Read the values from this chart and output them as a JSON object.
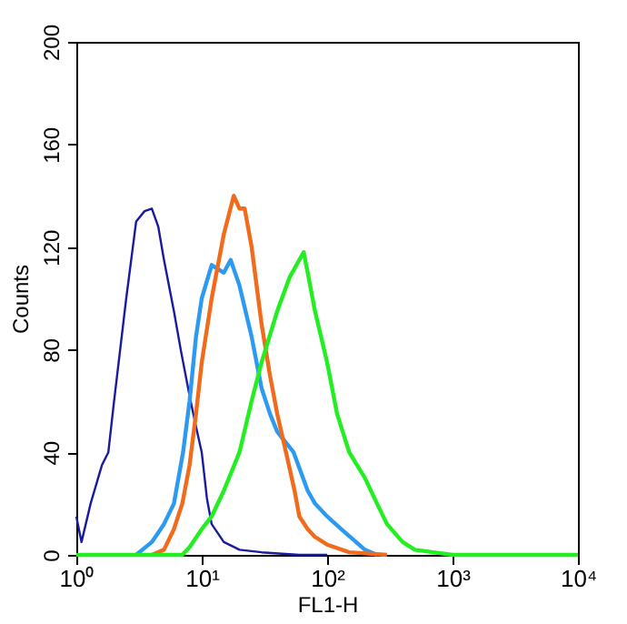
{
  "chart_data": {
    "type": "line",
    "xlabel": "FL1-H",
    "ylabel": "Counts",
    "log": "x",
    "grid": false,
    "marker": "none",
    "line_style": "solid",
    "xlim": [
      1,
      10000
    ],
    "xticks": [
      {
        "value": 1,
        "label": "10⁰"
      },
      {
        "value": 10,
        "label": "10¹"
      },
      {
        "value": 100,
        "label": "10²"
      },
      {
        "value": 1000,
        "label": "10³"
      },
      {
        "value": 10000,
        "label": "10⁴"
      }
    ],
    "ylim": [
      0,
      200
    ],
    "yticks": [
      0,
      40,
      80,
      120,
      160,
      200
    ],
    "series": [
      {
        "color": "#1a1a9e",
        "x": [
          1,
          1.1,
          1.3,
          1.6,
          1.8,
          2,
          2.5,
          3,
          3.5,
          4,
          4.5,
          5,
          6,
          6.8,
          8,
          9,
          10,
          11,
          12,
          15,
          20,
          30,
          60,
          100
        ],
        "values": [
          15,
          5,
          20,
          35,
          40,
          60,
          100,
          130,
          134,
          135,
          128,
          115,
          95,
          80,
          62,
          50,
          40,
          22,
          12,
          5,
          2,
          1,
          0,
          0
        ]
      },
      {
        "color": "#2b9af0",
        "x": [
          3,
          4,
          5,
          6,
          7.1,
          8,
          9,
          10,
          12,
          15,
          17,
          20,
          25,
          30,
          35,
          40,
          54,
          70,
          80,
          100,
          130,
          170,
          200,
          250
        ],
        "values": [
          0,
          5,
          12,
          20,
          40,
          60,
          85,
          100,
          113,
          110,
          115,
          105,
          85,
          65,
          55,
          48,
          40,
          25,
          20,
          15,
          10,
          5,
          2,
          0
        ]
      },
      {
        "color": "#f26a1b",
        "x": [
          4,
          5,
          6,
          7,
          8,
          9,
          10,
          12,
          15,
          18,
          20,
          22,
          25,
          30,
          35,
          40,
          47,
          55,
          60,
          70,
          80,
          100,
          150,
          300
        ],
        "values": [
          0,
          2,
          10,
          20,
          35,
          55,
          75,
          100,
          125,
          140,
          135,
          135,
          120,
          90,
          70,
          55,
          40,
          25,
          15,
          10,
          7,
          4,
          1,
          0
        ]
      },
      {
        "color": "#22ee22",
        "x": [
          1,
          7,
          8,
          10,
          12,
          15,
          20,
          25,
          30,
          40,
          50,
          60,
          65,
          70,
          80,
          100,
          120,
          150,
          200,
          250,
          300,
          400,
          500,
          700,
          1000,
          10000
        ],
        "values": [
          0,
          0,
          3,
          10,
          15,
          25,
          40,
          60,
          75,
          95,
          108,
          115,
          118,
          110,
          95,
          75,
          55,
          40,
          30,
          20,
          12,
          5,
          2,
          1,
          0,
          0
        ]
      }
    ]
  }
}
